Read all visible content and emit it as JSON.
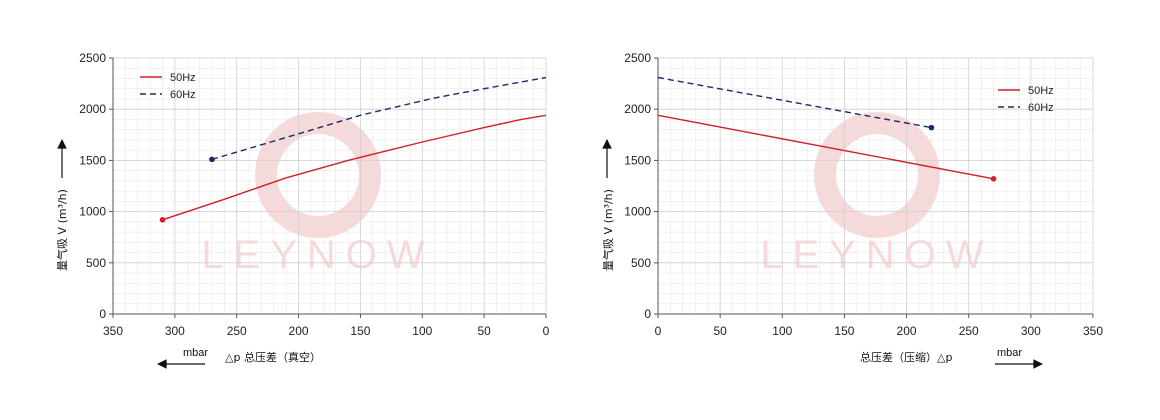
{
  "colors": {
    "series_50": "#d0202a",
    "series_60": "#1c2a6b",
    "grid": "#e3e3e3",
    "axis": "#555555",
    "watermark": "#f6d5d5"
  },
  "watermark_text": "LEYNOW",
  "chart_data": [
    {
      "type": "line",
      "title": "",
      "xlabel": "△p 总压差（真空）",
      "x_unit": "mbar",
      "ylabel": "量气吸 V (m³/h)",
      "xlim": [
        350,
        0
      ],
      "ylim": [
        0,
        2500
      ],
      "xticks": [
        "350",
        "300",
        "250",
        "200",
        "150",
        "100",
        "50",
        "0"
      ],
      "yticks": [
        "0",
        "500",
        "1000",
        "1500",
        "2000",
        "2500"
      ],
      "grid": true,
      "legend_position": "top-left",
      "series": [
        {
          "name": "50Hz",
          "style": "solid",
          "color": "#d0202a",
          "x": [
            310,
            260,
            210,
            160,
            100,
            50,
            20,
            0
          ],
          "y": [
            920,
            1120,
            1330,
            1500,
            1680,
            1820,
            1900,
            1940
          ]
        },
        {
          "name": "60Hz",
          "style": "dashed",
          "color": "#1c2a6b",
          "x": [
            270,
            200,
            150,
            90,
            50,
            0
          ],
          "y": [
            1510,
            1760,
            1940,
            2110,
            2200,
            2310
          ]
        }
      ]
    },
    {
      "type": "line",
      "title": "",
      "xlabel": "总压差（压缩）△p",
      "x_unit": "mbar",
      "ylabel": "量气吸 V (m³/h)",
      "xlim": [
        0,
        350
      ],
      "ylim": [
        0,
        2500
      ],
      "xticks": [
        "0",
        "50",
        "100",
        "150",
        "200",
        "250",
        "300",
        "350"
      ],
      "yticks": [
        "0",
        "500",
        "1000",
        "1500",
        "2000",
        "2500"
      ],
      "grid": true,
      "legend_position": "top-right",
      "series": [
        {
          "name": "50Hz",
          "style": "solid",
          "color": "#d0202a",
          "x": [
            0,
            270
          ],
          "y": [
            1940,
            1320
          ]
        },
        {
          "name": "60Hz",
          "style": "dashed",
          "color": "#1c2a6b",
          "x": [
            0,
            220
          ],
          "y": [
            2310,
            1820
          ]
        }
      ]
    }
  ]
}
